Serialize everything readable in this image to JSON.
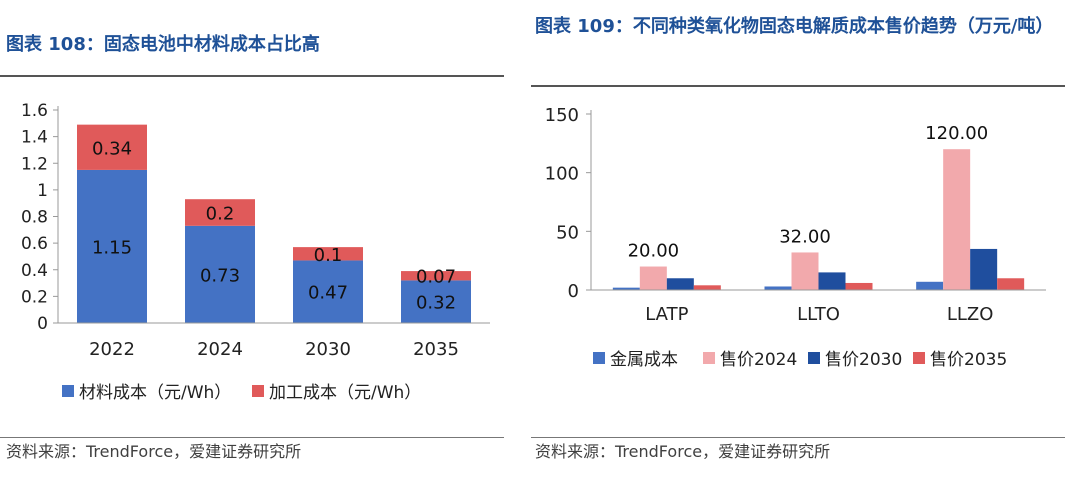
{
  "left": {
    "title": "图表 108：固态电池中材料成本占比高",
    "source": "资料来源：TrendForce，爱建证券研究所"
  },
  "right": {
    "title": "图表 109：不同种类氧化物固态电解质成本售价趋势（万元/吨）",
    "source": "资料来源：TrendForce，爱建证券研究所"
  },
  "chart_data": [
    {
      "type": "bar",
      "stacked": true,
      "title": "图表 108：固态电池中材料成本占比高",
      "categories": [
        "2022",
        "2024",
        "2030",
        "2035"
      ],
      "series": [
        {
          "name": "材料成本（元/Wh）",
          "color": "#4472c4",
          "values": [
            1.15,
            0.73,
            0.47,
            0.32
          ],
          "labels": [
            "1.15",
            "0.73",
            "0.47",
            "0.32"
          ]
        },
        {
          "name": "加工成本（元/Wh）",
          "color": "#e05a5a",
          "values": [
            0.34,
            0.2,
            0.1,
            0.07
          ],
          "labels": [
            "0.34",
            "0.2",
            "0.1",
            "0.07"
          ]
        }
      ],
      "ylim": [
        0,
        1.6
      ],
      "yticks": [
        0,
        0.2,
        0.4,
        0.6,
        0.8,
        1,
        1.2,
        1.4,
        1.6
      ],
      "ytick_labels": [
        "0",
        "0.2",
        "0.4",
        "0.6",
        "0.8",
        "1",
        "1.2",
        "1.4",
        "1.6"
      ],
      "xlabel": "",
      "ylabel": "",
      "legend_position": "bottom"
    },
    {
      "type": "bar",
      "stacked": false,
      "title": "图表 109：不同种类氧化物固态电解质成本售价趋势（万元/吨）",
      "categories": [
        "LATP",
        "LLTO",
        "LLZO"
      ],
      "series": [
        {
          "name": "金属成本",
          "color": "#4472c4",
          "values": [
            2,
            3,
            7
          ]
        },
        {
          "name": "售价2024",
          "color": "#f2a9ac",
          "values": [
            20,
            32,
            120
          ]
        },
        {
          "name": "售价2030",
          "color": "#1f4e9e",
          "values": [
            10,
            15,
            35
          ]
        },
        {
          "name": "售价2035",
          "color": "#e05a5a",
          "values": [
            4,
            6,
            10
          ]
        }
      ],
      "annotations": [
        {
          "category": "LATP",
          "series": "售价2024",
          "text": "20.00"
        },
        {
          "category": "LLTO",
          "series": "售价2024",
          "text": "32.00"
        },
        {
          "category": "LLZO",
          "series": "售价2024",
          "text": "120.00"
        }
      ],
      "ylim": [
        0,
        150
      ],
      "yticks": [
        0,
        50,
        100,
        150
      ],
      "ytick_labels": [
        "0",
        "50",
        "100",
        "150"
      ],
      "xlabel": "",
      "ylabel": "",
      "legend_position": "bottom"
    }
  ]
}
